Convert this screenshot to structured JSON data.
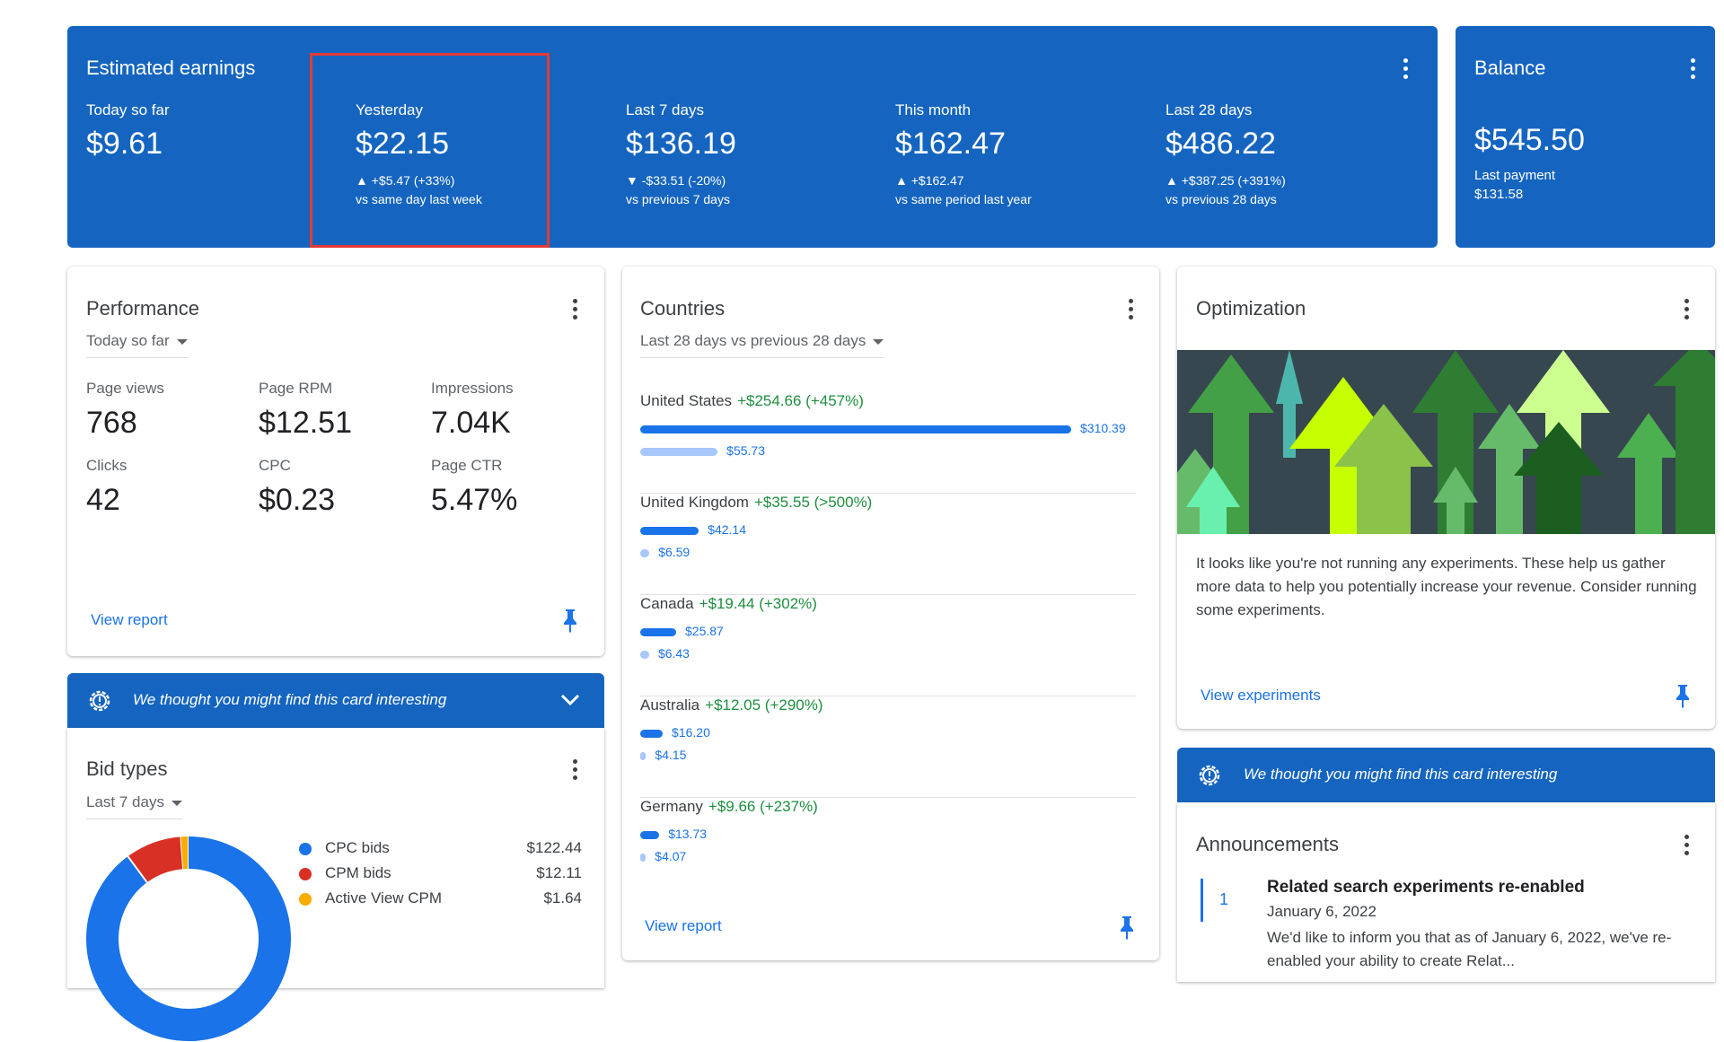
{
  "earnings": {
    "title": "Estimated earnings",
    "items": [
      {
        "label": "Today so far",
        "value": "$9.61",
        "delta": "",
        "compare": ""
      },
      {
        "label": "Yesterday",
        "value": "$22.15",
        "delta": "▲ +$5.47 (+33%)",
        "compare": "vs same day last week"
      },
      {
        "label": "Last 7 days",
        "value": "$136.19",
        "delta": "▼ -$33.51 (-20%)",
        "compare": "vs previous 7 days"
      },
      {
        "label": "This month",
        "value": "$162.47",
        "delta": "▲ +$162.47",
        "compare": "vs same period last year"
      },
      {
        "label": "Last 28 days",
        "value": "$486.22",
        "delta": "▲ +$387.25 (+391%)",
        "compare": "vs previous 28 days"
      }
    ]
  },
  "balance": {
    "title": "Balance",
    "value": "$545.50",
    "last_payment_label": "Last payment",
    "last_payment_value": "$131.58"
  },
  "performance": {
    "title": "Performance",
    "range": "Today so far",
    "metrics": [
      {
        "label": "Page views",
        "value": "768"
      },
      {
        "label": "Page RPM",
        "value": "$12.51"
      },
      {
        "label": "Impressions",
        "value": "7.04K"
      },
      {
        "label": "Clicks",
        "value": "42"
      },
      {
        "label": "CPC",
        "value": "$0.23"
      },
      {
        "label": "Page CTR",
        "value": "5.47%"
      }
    ],
    "link": "View report"
  },
  "interesting_banner": "We thought you might find this card interesting",
  "bid_types": {
    "title": "Bid types",
    "range": "Last 7 days",
    "items": [
      {
        "label": "CPC bids",
        "value": "$122.44",
        "amount": 122.44,
        "color": "#1a73e8"
      },
      {
        "label": "CPM bids",
        "value": "$12.11",
        "amount": 12.11,
        "color": "#d93025"
      },
      {
        "label": "Active View CPM",
        "value": "$1.64",
        "amount": 1.64,
        "color": "#f9ab00"
      }
    ]
  },
  "countries": {
    "title": "Countries",
    "range": "Last 28 days vs previous 28 days",
    "max_value": 310.39,
    "rows": [
      {
        "name": "United States",
        "change": "+$254.66 (+457%)",
        "current": "$310.39",
        "previous": "$55.73",
        "current_amount": 310.39,
        "previous_amount": 55.73
      },
      {
        "name": "United Kingdom",
        "change": "+$35.55 (>500%)",
        "current": "$42.14",
        "previous": "$6.59",
        "current_amount": 42.14,
        "previous_amount": 6.59
      },
      {
        "name": "Canada",
        "change": "+$19.44 (+302%)",
        "current": "$25.87",
        "previous": "$6.43",
        "current_amount": 25.87,
        "previous_amount": 6.43
      },
      {
        "name": "Australia",
        "change": "+$12.05 (+290%)",
        "current": "$16.20",
        "previous": "$4.15",
        "current_amount": 16.2,
        "previous_amount": 4.15
      },
      {
        "name": "Germany",
        "change": "+$9.66 (+237%)",
        "current": "$13.73",
        "previous": "$4.07",
        "current_amount": 13.73,
        "previous_amount": 4.07
      }
    ],
    "link": "View report"
  },
  "optimization": {
    "title": "Optimization",
    "body": "It looks like you're not running any experiments. These help us gather more data to help you potentially increase your revenue. Consider running some experiments.",
    "link": "View experiments"
  },
  "announcements": {
    "title": "Announcements",
    "index": "1",
    "headline": "Related search experiments re-enabled",
    "date": "January 6, 2022",
    "text": "We'd like to inform you that as of January 6, 2022, we've re-enabled your ability to create Relat..."
  }
}
